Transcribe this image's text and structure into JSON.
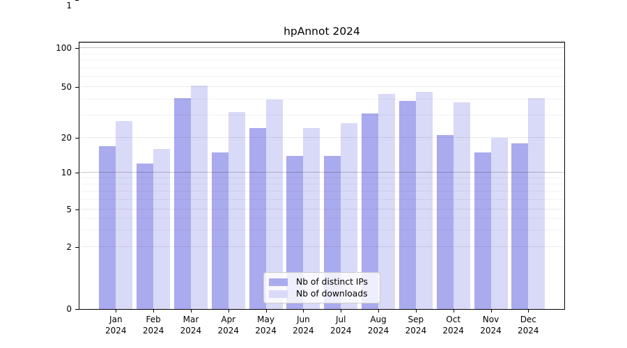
{
  "title": "hpAnnot 2024",
  "chart_data": {
    "type": "bar",
    "title": "hpAnnot 2024",
    "categories": [
      "Jan 2024",
      "Feb 2024",
      "Mar 2024",
      "Apr 2024",
      "May 2024",
      "Jun 2024",
      "Jul 2024",
      "Aug 2024",
      "Sep 2024",
      "Oct 2024",
      "Nov 2024",
      "Dec 2024"
    ],
    "series": [
      {
        "name": "Nb of distinct IPs",
        "color": "#aaaaee",
        "values": [
          17,
          12,
          41,
          15,
          24,
          14,
          14,
          31,
          39,
          21,
          15,
          18
        ]
      },
      {
        "name": "Nb of downloads",
        "color": "#d9d9f8",
        "values": [
          27,
          16,
          51,
          32,
          40,
          24,
          26,
          44,
          46,
          38,
          20,
          41
        ]
      }
    ],
    "xlabel": "",
    "ylabel": "",
    "y_ticks": [
      0,
      1,
      2,
      5,
      10,
      20,
      50,
      100
    ],
    "y_minor_gridlines": [
      3,
      4,
      6,
      7,
      8,
      9,
      30,
      40,
      60,
      70,
      80,
      90
    ],
    "ylim": [
      0,
      112
    ],
    "yscale": "symlog",
    "grid": true,
    "legend_position": "lower center",
    "background_color": "#ffffff",
    "axis_color": "#000000"
  }
}
